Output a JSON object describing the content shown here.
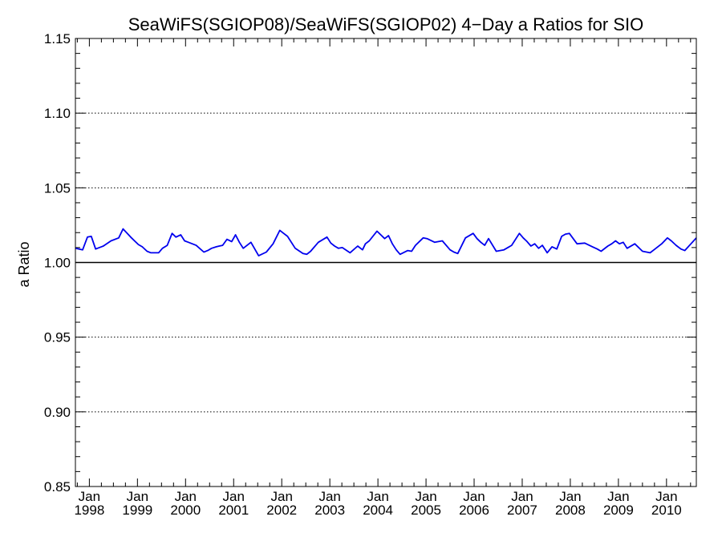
{
  "chart_data": {
    "type": "line",
    "title": "SeaWiFS(SGIOP08)/SeaWiFS(SGIOP02) 4−Day a Ratios for SIO",
    "xlabel": "",
    "ylabel": "a Ratio",
    "ylim": [
      0.85,
      1.15
    ],
    "xlim": [
      1997.71,
      2010.62
    ],
    "y_ticks": [
      0.85,
      0.9,
      0.95,
      1.0,
      1.05,
      1.1,
      1.15
    ],
    "y_tick_labels": [
      "0.85",
      "0.90",
      "0.95",
      "1.00",
      "1.05",
      "1.10",
      "1.15"
    ],
    "x_ticks": [
      {
        "month": "Jan",
        "year": "1998",
        "value": 1998
      },
      {
        "month": "Jan",
        "year": "1999",
        "value": 1999
      },
      {
        "month": "Jan",
        "year": "2000",
        "value": 2000
      },
      {
        "month": "Jan",
        "year": "2001",
        "value": 2001
      },
      {
        "month": "Jan",
        "year": "2002",
        "value": 2002
      },
      {
        "month": "Jan",
        "year": "2003",
        "value": 2003
      },
      {
        "month": "Jan",
        "year": "2004",
        "value": 2004
      },
      {
        "month": "Jan",
        "year": "2005",
        "value": 2005
      },
      {
        "month": "Jan",
        "year": "2006",
        "value": 2006
      },
      {
        "month": "Jan",
        "year": "2007",
        "value": 2007
      },
      {
        "month": "Jan",
        "year": "2008",
        "value": 2008
      },
      {
        "month": "Jan",
        "year": "2009",
        "value": 2009
      },
      {
        "month": "Jan",
        "year": "2010",
        "value": 2010
      }
    ],
    "gridlines_y": [
      0.9,
      0.95,
      1.05,
      1.1
    ],
    "grid_style": "dotted",
    "reference_line": 1.0,
    "series": [
      {
        "color": "#0000ee",
        "x": [
          1997.71,
          1997.86,
          1997.96,
          1998.04,
          1998.13,
          1998.29,
          1998.45,
          1998.61,
          1998.7,
          1998.86,
          1998.94,
          1999.02,
          1999.1,
          1999.2,
          1999.28,
          1999.36,
          1999.44,
          1999.52,
          1999.62,
          1999.72,
          1999.8,
          1999.9,
          1999.98,
          2000.06,
          2000.22,
          2000.38,
          2000.46,
          2000.54,
          2000.64,
          2000.7,
          2000.77,
          2000.86,
          2000.96,
          2001.04,
          2001.12,
          2001.2,
          2001.36,
          2001.52,
          2001.68,
          2001.82,
          2001.96,
          2002.04,
          2002.12,
          2002.28,
          2002.44,
          2002.52,
          2002.6,
          2002.76,
          2002.94,
          2003.02,
          2003.1,
          2003.18,
          2003.26,
          2003.42,
          2003.58,
          2003.68,
          2003.74,
          2003.82,
          2003.98,
          2004.14,
          2004.22,
          2004.3,
          2004.38,
          2004.46,
          2004.62,
          2004.7,
          2004.78,
          2004.94,
          2005.02,
          2005.18,
          2005.34,
          2005.5,
          2005.58,
          2005.66,
          2005.82,
          2005.98,
          2006.06,
          2006.14,
          2006.22,
          2006.3,
          2006.46,
          2006.62,
          2006.78,
          2006.94,
          2007.02,
          2007.1,
          2007.18,
          2007.26,
          2007.34,
          2007.42,
          2007.52,
          2007.62,
          2007.72,
          2007.82,
          2007.9,
          2007.98,
          2008.14,
          2008.3,
          2008.46,
          2008.56,
          2008.64,
          2008.78,
          2008.86,
          2008.94,
          2009.02,
          2009.1,
          2009.18,
          2009.34,
          2009.5,
          2009.66,
          2009.74,
          2009.82,
          2009.9,
          2010.02,
          2010.1,
          2010.2,
          2010.3,
          2010.38,
          2010.62
        ],
        "y": [
          1.0095,
          1.0085,
          1.017,
          1.0175,
          1.009,
          1.011,
          1.0145,
          1.0165,
          1.0225,
          1.017,
          1.0145,
          1.012,
          1.0105,
          1.0075,
          1.0065,
          1.0065,
          1.0065,
          1.0095,
          1.0115,
          1.0195,
          1.017,
          1.0185,
          1.0145,
          1.0135,
          1.0115,
          1.007,
          1.008,
          1.0095,
          1.0105,
          1.011,
          1.0115,
          1.0155,
          1.014,
          1.0185,
          1.0135,
          1.0095,
          1.0135,
          1.0045,
          1.007,
          1.0125,
          1.0215,
          1.0195,
          1.0175,
          1.0095,
          1.006,
          1.0055,
          1.0075,
          1.0135,
          1.017,
          1.013,
          1.011,
          1.0095,
          1.01,
          1.0065,
          1.011,
          1.0085,
          1.0125,
          1.0145,
          1.021,
          1.016,
          1.018,
          1.0125,
          1.0085,
          1.0055,
          1.008,
          1.0075,
          1.0115,
          1.0165,
          1.016,
          1.0135,
          1.0145,
          1.0085,
          1.007,
          1.006,
          1.0165,
          1.0195,
          1.016,
          1.0135,
          1.0115,
          1.016,
          1.0075,
          1.0085,
          1.0115,
          1.0195,
          1.0165,
          1.014,
          1.011,
          1.0125,
          1.0095,
          1.0115,
          1.0065,
          1.0105,
          1.009,
          1.0175,
          1.019,
          1.0195,
          1.0125,
          1.013,
          1.0105,
          1.009,
          1.0075,
          1.011,
          1.0125,
          1.0145,
          1.0125,
          1.0135,
          1.0095,
          1.0125,
          1.0075,
          1.0065,
          1.0085,
          1.0105,
          1.0125,
          1.0165,
          1.0145,
          1.0115,
          1.009,
          1.008,
          1.0165
        ]
      }
    ]
  }
}
